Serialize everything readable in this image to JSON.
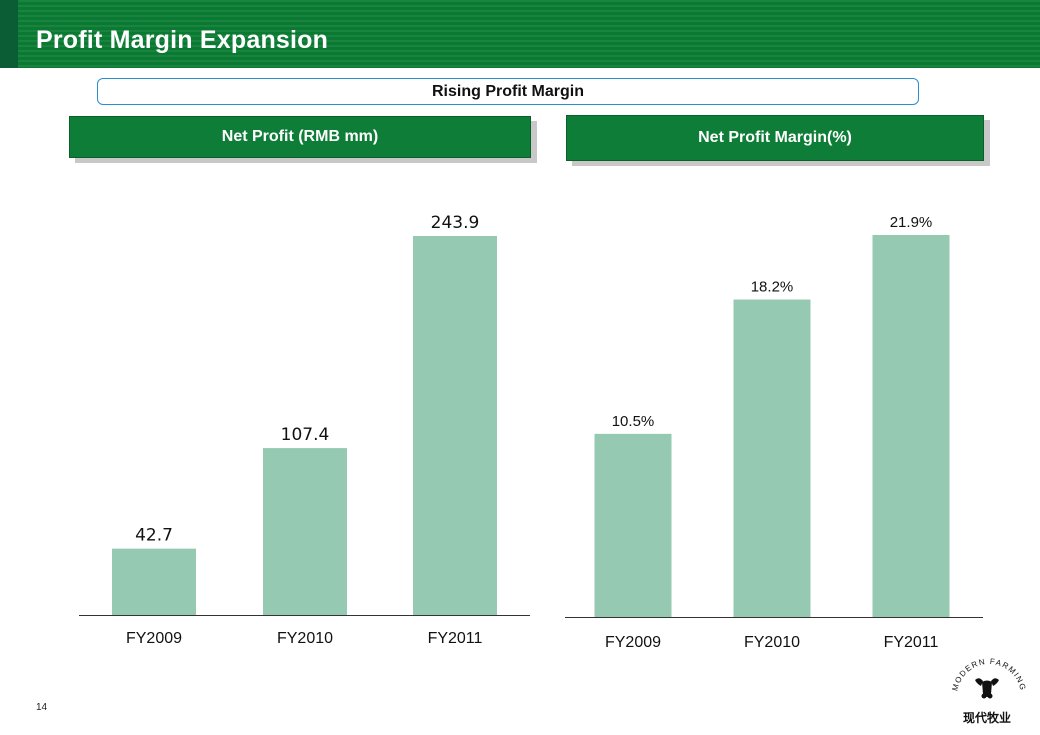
{
  "header": {
    "title": "Profit Margin Expansion"
  },
  "banner": {
    "text": "Rising Profit Margin"
  },
  "footer": {
    "page_number": "14"
  },
  "logo": {
    "text_en": "MODERN FARMING",
    "text_cn": "现代牧业"
  },
  "colors": {
    "header_green": "#0a7a32",
    "bar_fill": "#96c9b1",
    "banner_border": "#2a8fd0"
  },
  "chart_data": [
    {
      "type": "bar",
      "title": "Net Profit  (RMB mm)",
      "categories": [
        "FY2009",
        "FY2010",
        "FY2011"
      ],
      "values": [
        42.7,
        107.4,
        243.9
      ],
      "value_labels": [
        "42.7",
        "107.4",
        "243.9"
      ],
      "ylim": [
        0,
        243.9
      ],
      "grid": false,
      "legend": "none"
    },
    {
      "type": "bar",
      "title": "Net Profit Margin(%)",
      "categories": [
        "FY2009",
        "FY2010",
        "FY2011"
      ],
      "values": [
        10.5,
        18.2,
        21.9
      ],
      "value_labels": [
        "10.5%",
        "18.2%",
        "21.9%"
      ],
      "ylim": [
        0,
        21.9
      ],
      "grid": false,
      "legend": "none"
    }
  ]
}
